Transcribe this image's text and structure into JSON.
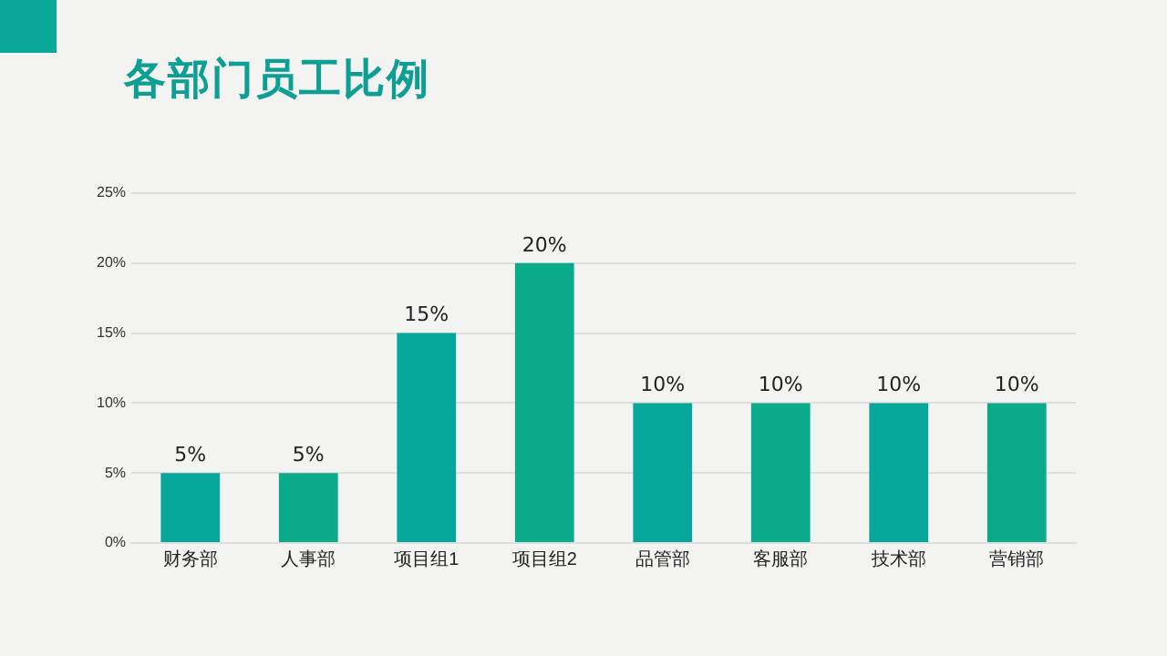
{
  "chart_data": {
    "type": "bar",
    "title": "各部门员工比例",
    "categories": [
      "财务部",
      "人事部",
      "项目组1",
      "项目组2",
      "品管部",
      "客服部",
      "技术部",
      "营销部"
    ],
    "values": [
      5,
      5,
      15,
      20,
      10,
      10,
      10,
      10
    ],
    "colors": [
      "#06a69a",
      "#0aab8b",
      "#06a69a",
      "#0aab8b",
      "#06a69a",
      "#0aab8b",
      "#06a69a",
      "#0aab8b"
    ],
    "value_labels": [
      "5%",
      "5%",
      "15%",
      "20%",
      "10%",
      "10%",
      "10%",
      "10%"
    ],
    "ylim": [
      0,
      25
    ],
    "yticks": [
      {
        "value": 0,
        "label": "0%"
      },
      {
        "value": 5,
        "label": "5%"
      },
      {
        "value": 10,
        "label": "10%"
      },
      {
        "value": 15,
        "label": "15%"
      },
      {
        "value": 20,
        "label": "20%"
      },
      {
        "value": 25,
        "label": "25%"
      }
    ],
    "grid": "y",
    "legend": false
  }
}
